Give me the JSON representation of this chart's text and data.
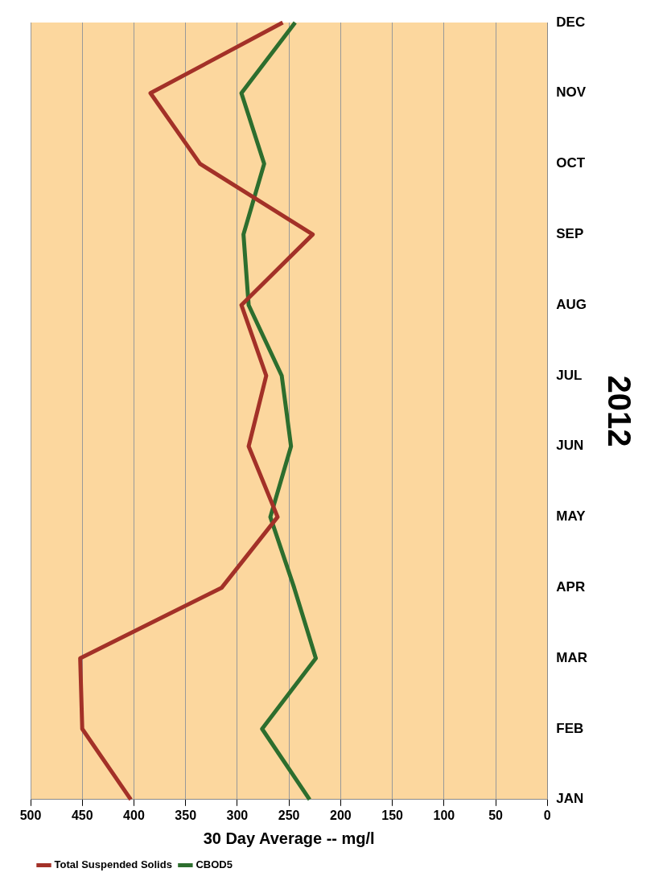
{
  "chart_data": {
    "type": "line",
    "orientation": "horizontal",
    "xlabel": "30 Day Average -- mg/l",
    "ylabel": "2012",
    "categories": [
      "DEC",
      "NOV",
      "OCT",
      "SEP",
      "AUG",
      "JUL",
      "JUN",
      "MAY",
      "APR",
      "MAR",
      "FEB",
      "JAN"
    ],
    "series": [
      {
        "name": "Total Suspended Solids",
        "color": "#a33128",
        "values": [
          256,
          384,
          336,
          227,
          296,
          272,
          289,
          261,
          315,
          452,
          450,
          403
        ]
      },
      {
        "name": "CBOD5",
        "color": "#2d6e2e",
        "values": [
          244,
          296,
          274,
          294,
          289,
          257,
          248,
          268,
          245,
          224,
          276,
          230
        ]
      }
    ],
    "xlim": [
      500,
      0
    ],
    "xticks": [
      500,
      450,
      400,
      350,
      300,
      250,
      200,
      150,
      100,
      50,
      0
    ],
    "grid": "x",
    "legend": "bottom left",
    "marker": "none",
    "line_style": "solid"
  }
}
